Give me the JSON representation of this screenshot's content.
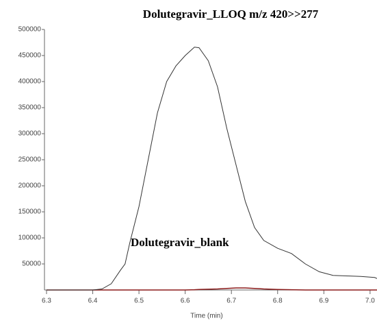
{
  "chart_data": {
    "type": "line",
    "title": "Dolutegravir_LLOQ  m/z 420>>277",
    "x_label": "Time (min)",
    "x": [
      6.3,
      6.36,
      6.4,
      6.42,
      6.44,
      6.46,
      6.47,
      6.48,
      6.5,
      6.52,
      6.54,
      6.56,
      6.58,
      6.6,
      6.62,
      6.63,
      6.65,
      6.67,
      6.69,
      6.71,
      6.73,
      6.75,
      6.77,
      6.8,
      6.83,
      6.86,
      6.89,
      6.92,
      6.95,
      6.98,
      7.01,
      7.015
    ],
    "series": [
      {
        "color": "#333333",
        "values": [
          0,
          0,
          0,
          2000,
          12000,
          38000,
          50000,
          90000,
          160000,
          250000,
          340000,
          400000,
          430000,
          450000,
          466000,
          465000,
          440000,
          390000,
          310000,
          240000,
          170000,
          120000,
          95000,
          80000,
          70000,
          50000,
          35000,
          28000,
          27000,
          26000,
          24000,
          22000
        ]
      },
      {
        "name": "Dolutegravir_blank",
        "color": "#8b1a1a",
        "values": [
          0,
          0,
          0,
          0,
          0,
          0,
          0,
          0,
          0,
          0,
          0,
          0,
          0,
          0,
          500,
          1000,
          1500,
          2000,
          3000,
          4000,
          4000,
          3000,
          2000,
          1000,
          500,
          0,
          0,
          0,
          0,
          0,
          0,
          0
        ]
      }
    ],
    "xlim": [
      6.3,
      7.015
    ],
    "ylim": [
      0,
      500000
    ],
    "xticks": [
      6.3,
      6.4,
      6.5,
      6.6,
      6.7,
      6.8,
      6.9,
      {
        "value": 7.0,
        "label": "7.0"
      }
    ],
    "yticks": [
      50000,
      100000,
      150000,
      200000,
      250000,
      300000,
      350000,
      400000,
      450000,
      500000
    ]
  }
}
